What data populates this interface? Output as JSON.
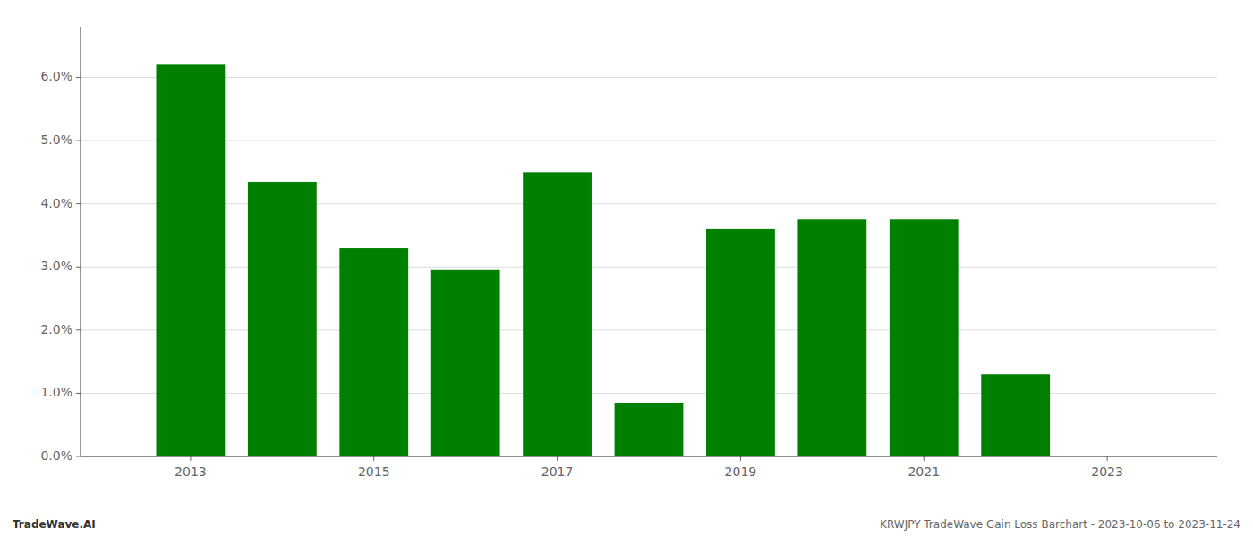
{
  "chart_data": {
    "type": "bar",
    "x": [
      2013,
      2014,
      2015,
      2016,
      2017,
      2018,
      2019,
      2020,
      2021,
      2022,
      2023
    ],
    "values": [
      0.062,
      0.0435,
      0.033,
      0.0295,
      0.045,
      0.0085,
      0.036,
      0.0375,
      0.0375,
      0.013,
      0.0
    ],
    "color": "#008000",
    "xlim": [
      2011.8,
      2024.2
    ],
    "xticks": [
      2013,
      2015,
      2017,
      2019,
      2021,
      2023
    ],
    "ylim": [
      0.0,
      0.068
    ],
    "yticks": [
      {
        "value": 0.0,
        "label": "0.0%"
      },
      {
        "value": 0.01,
        "label": "1.0%"
      },
      {
        "value": 0.02,
        "label": "2.0%"
      },
      {
        "value": 0.03,
        "label": "3.0%"
      },
      {
        "value": 0.04,
        "label": "4.0%"
      },
      {
        "value": 0.05,
        "label": "5.0%"
      },
      {
        "value": 0.06,
        "label": "6.0%"
      }
    ],
    "grid": true,
    "annotations": [
      "TradeWave.AI",
      "KRWJPY TradeWave Gain Loss Barchart - 2023-10-06 to 2023-11-24"
    ]
  }
}
